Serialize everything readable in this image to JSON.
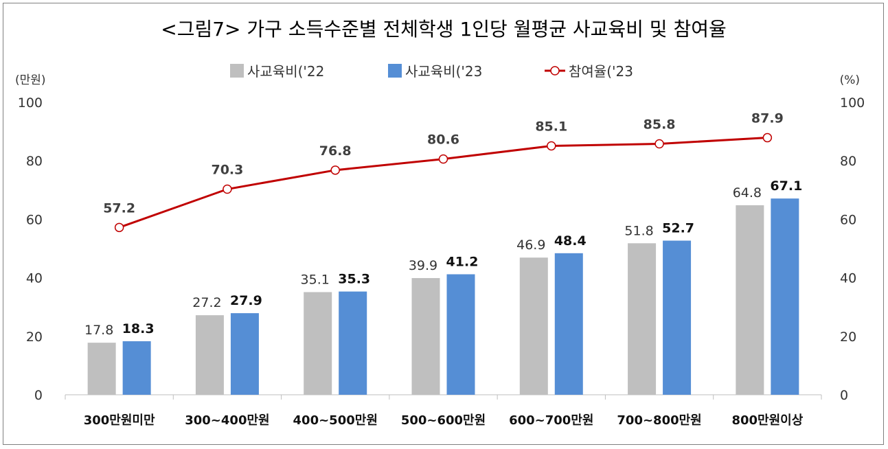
{
  "chart_data": {
    "type": "bar",
    "title": "<그림7> 가구 소득수준별 전체학생 1인당 월평균 사교육비 및 참여율",
    "y_left_unit": "(만원)",
    "y_right_unit": "(%)",
    "ylim_left": [
      0,
      100
    ],
    "ylim_right": [
      0,
      100
    ],
    "y_ticks": [
      0,
      20,
      40,
      60,
      80,
      100
    ],
    "legend_position": "top-center",
    "grid": false,
    "categories": [
      "300만원미만",
      "300~400만원",
      "400~500만원",
      "500~600만원",
      "600~700만원",
      "700~800만원",
      "800만원이상"
    ],
    "series": [
      {
        "name": "사교육비('22",
        "type": "bar",
        "axis": "left",
        "color": "#BFBFBF",
        "values": [
          17.8,
          27.2,
          35.1,
          39.9,
          46.9,
          51.8,
          64.8
        ]
      },
      {
        "name": "사교육비('23",
        "type": "bar",
        "axis": "left",
        "color": "#558ED5",
        "values": [
          18.3,
          27.9,
          35.3,
          41.2,
          48.4,
          52.7,
          67.1
        ]
      },
      {
        "name": "참여율('23",
        "type": "line",
        "axis": "right",
        "color": "#C00000",
        "values": [
          57.2,
          70.3,
          76.8,
          80.6,
          85.1,
          85.8,
          87.9
        ]
      }
    ]
  }
}
